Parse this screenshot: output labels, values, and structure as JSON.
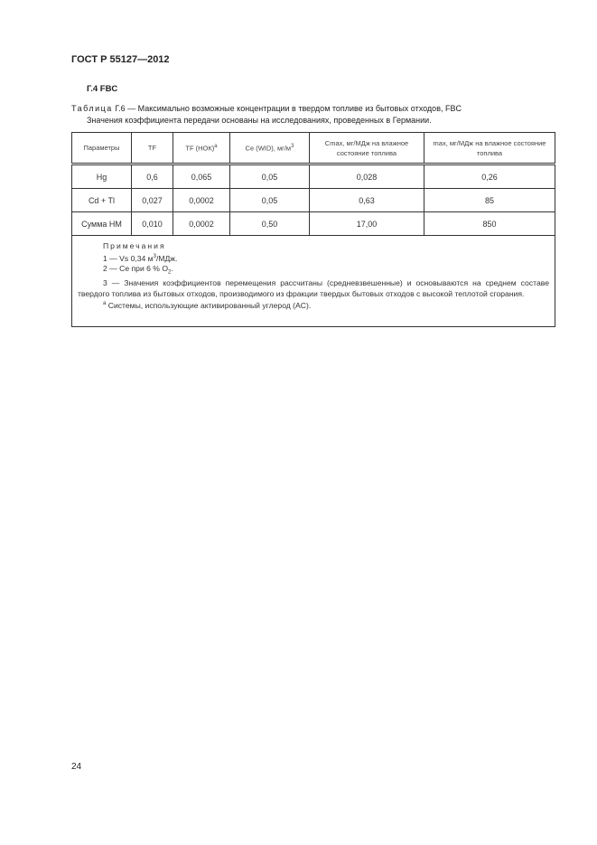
{
  "header": {
    "doc_code": "ГОСТ Р 55127—2012"
  },
  "section": {
    "title": "Г.4 FBC"
  },
  "caption": {
    "label": "Таблица",
    "number": "Г.6",
    "text": "— Максимально возможные концентрации в твердом топливе из бытовых отходов, FBC",
    "subtext": "Значения коэффициента передачи основаны на исследованиях, проведенных в Германии."
  },
  "table": {
    "headers": [
      "Параметры",
      "TF",
      "TF (НОК)",
      "Ce (WID), мг/м",
      "Cmax, мг/МДж на влажное состояние топлива",
      "max, мг/МДж на влажное состояние топлива"
    ],
    "header_sup": {
      "tf_hok": "а",
      "ce": "3"
    },
    "rows": [
      [
        "Hg",
        "0,6",
        "0,065",
        "0,05",
        "0,028",
        "0,26"
      ],
      [
        "Cd + Tl",
        "0,027",
        "0,0002",
        "0,05",
        "0,63",
        "85"
      ],
      [
        "Сумма НМ",
        "0,010",
        "0,0002",
        "0,50",
        "17,00",
        "850"
      ]
    ],
    "notes": {
      "title": "Примечания",
      "n1_pre": "1 — Vs 0,34 м",
      "n1_sup": "3",
      "n1_post": "/МДж.",
      "n2_pre": "2 — Ce при 6 % O",
      "n2_sub": "2",
      "n2_post": ".",
      "n3": "3 — Значения коэффициентов перемещения рассчитаны (средневзвешенные) и основываются на среднем составе твердого топлива из бытовых отходов, производимого из фракции твердых бытовых отходов с высокой теплотой сгорания.",
      "fa_sup": "а",
      "fa": "Системы, использующие активированный углерод (AC)."
    }
  },
  "footer": {
    "page_number": "24"
  }
}
